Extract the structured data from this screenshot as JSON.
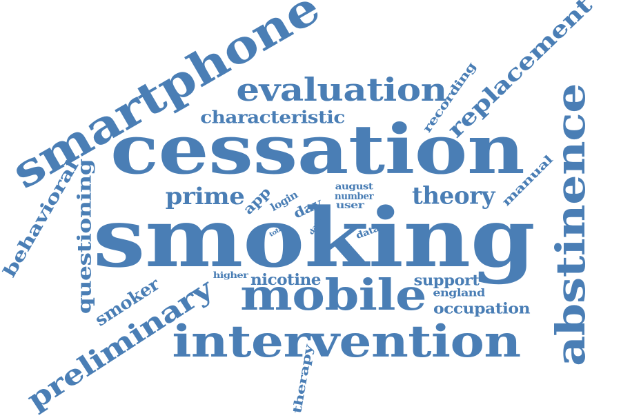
{
  "color": "#4a7eb5",
  "words": [
    {
      "id": "smoking",
      "text": "smoking"
    },
    {
      "id": "cessation",
      "text": "cessation"
    },
    {
      "id": "intervention",
      "text": "intervention"
    },
    {
      "id": "mobile",
      "text": "mobile"
    },
    {
      "id": "smartphone",
      "text": "smartphone"
    },
    {
      "id": "abstinence",
      "text": "abstinence"
    },
    {
      "id": "evaluation",
      "text": "evaluation"
    },
    {
      "id": "replacement",
      "text": "replacement"
    },
    {
      "id": "preliminary",
      "text": "preliminary"
    },
    {
      "id": "questioning",
      "text": "questioning"
    },
    {
      "id": "behavioral",
      "text": "behavioral"
    },
    {
      "id": "characteristic",
      "text": "characteristic"
    },
    {
      "id": "theory",
      "text": "theory"
    },
    {
      "id": "prime",
      "text": "prime"
    },
    {
      "id": "smoker",
      "text": "smoker"
    },
    {
      "id": "nicotine",
      "text": "nicotine"
    },
    {
      "id": "support",
      "text": "support"
    },
    {
      "id": "occupation",
      "text": "occupation"
    },
    {
      "id": "recording",
      "text": "recording"
    },
    {
      "id": "manual",
      "text": "manual"
    },
    {
      "id": "therapy",
      "text": "therapy"
    },
    {
      "id": "app",
      "text": "app"
    },
    {
      "id": "login",
      "text": "login"
    },
    {
      "id": "day",
      "text": "day"
    },
    {
      "id": "august",
      "text": "august"
    },
    {
      "id": "number",
      "text": "number"
    },
    {
      "id": "user",
      "text": "user"
    },
    {
      "id": "data",
      "text": "data"
    },
    {
      "id": "england",
      "text": "england"
    },
    {
      "id": "higher",
      "text": "higher"
    },
    {
      "id": "total",
      "text": "total"
    },
    {
      "id": "date",
      "text": "date"
    }
  ]
}
